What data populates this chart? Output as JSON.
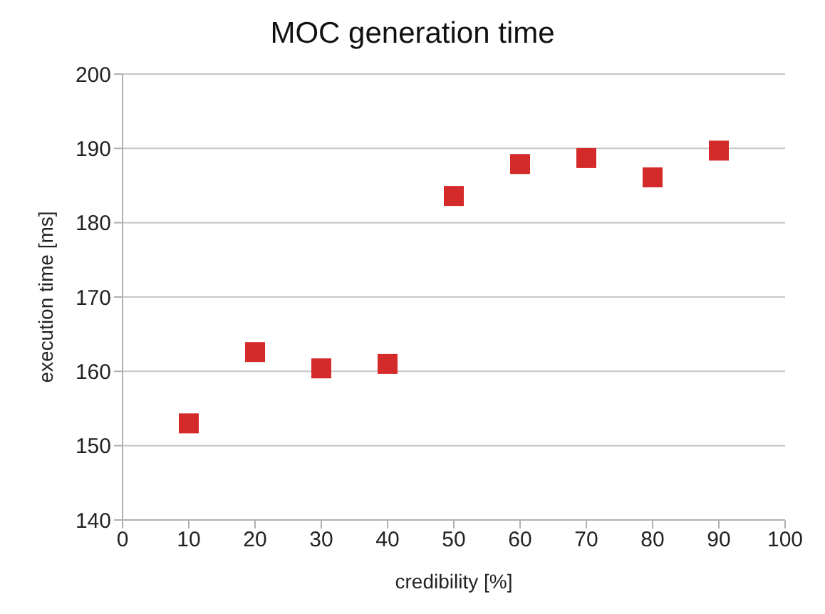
{
  "chart_data": {
    "type": "scatter",
    "title": "MOC generation time",
    "xlabel": "credibility [%]",
    "ylabel": "execution time [ms]",
    "x": [
      10,
      20,
      30,
      40,
      50,
      60,
      70,
      80,
      90
    ],
    "series": [
      {
        "color": "#d42a2a",
        "values": [
          153,
          162.6,
          160.4,
          161,
          183.6,
          187.9,
          188.7,
          186.1,
          189.7
        ]
      }
    ],
    "xlim": [
      0,
      100
    ],
    "xticks": [
      0,
      10,
      20,
      30,
      40,
      50,
      60,
      70,
      80,
      90,
      100
    ],
    "ylim": [
      140,
      200
    ],
    "yticks": [
      140,
      150,
      160,
      170,
      180,
      190,
      200
    ],
    "grid": "y",
    "legend": false,
    "marker": "square"
  }
}
